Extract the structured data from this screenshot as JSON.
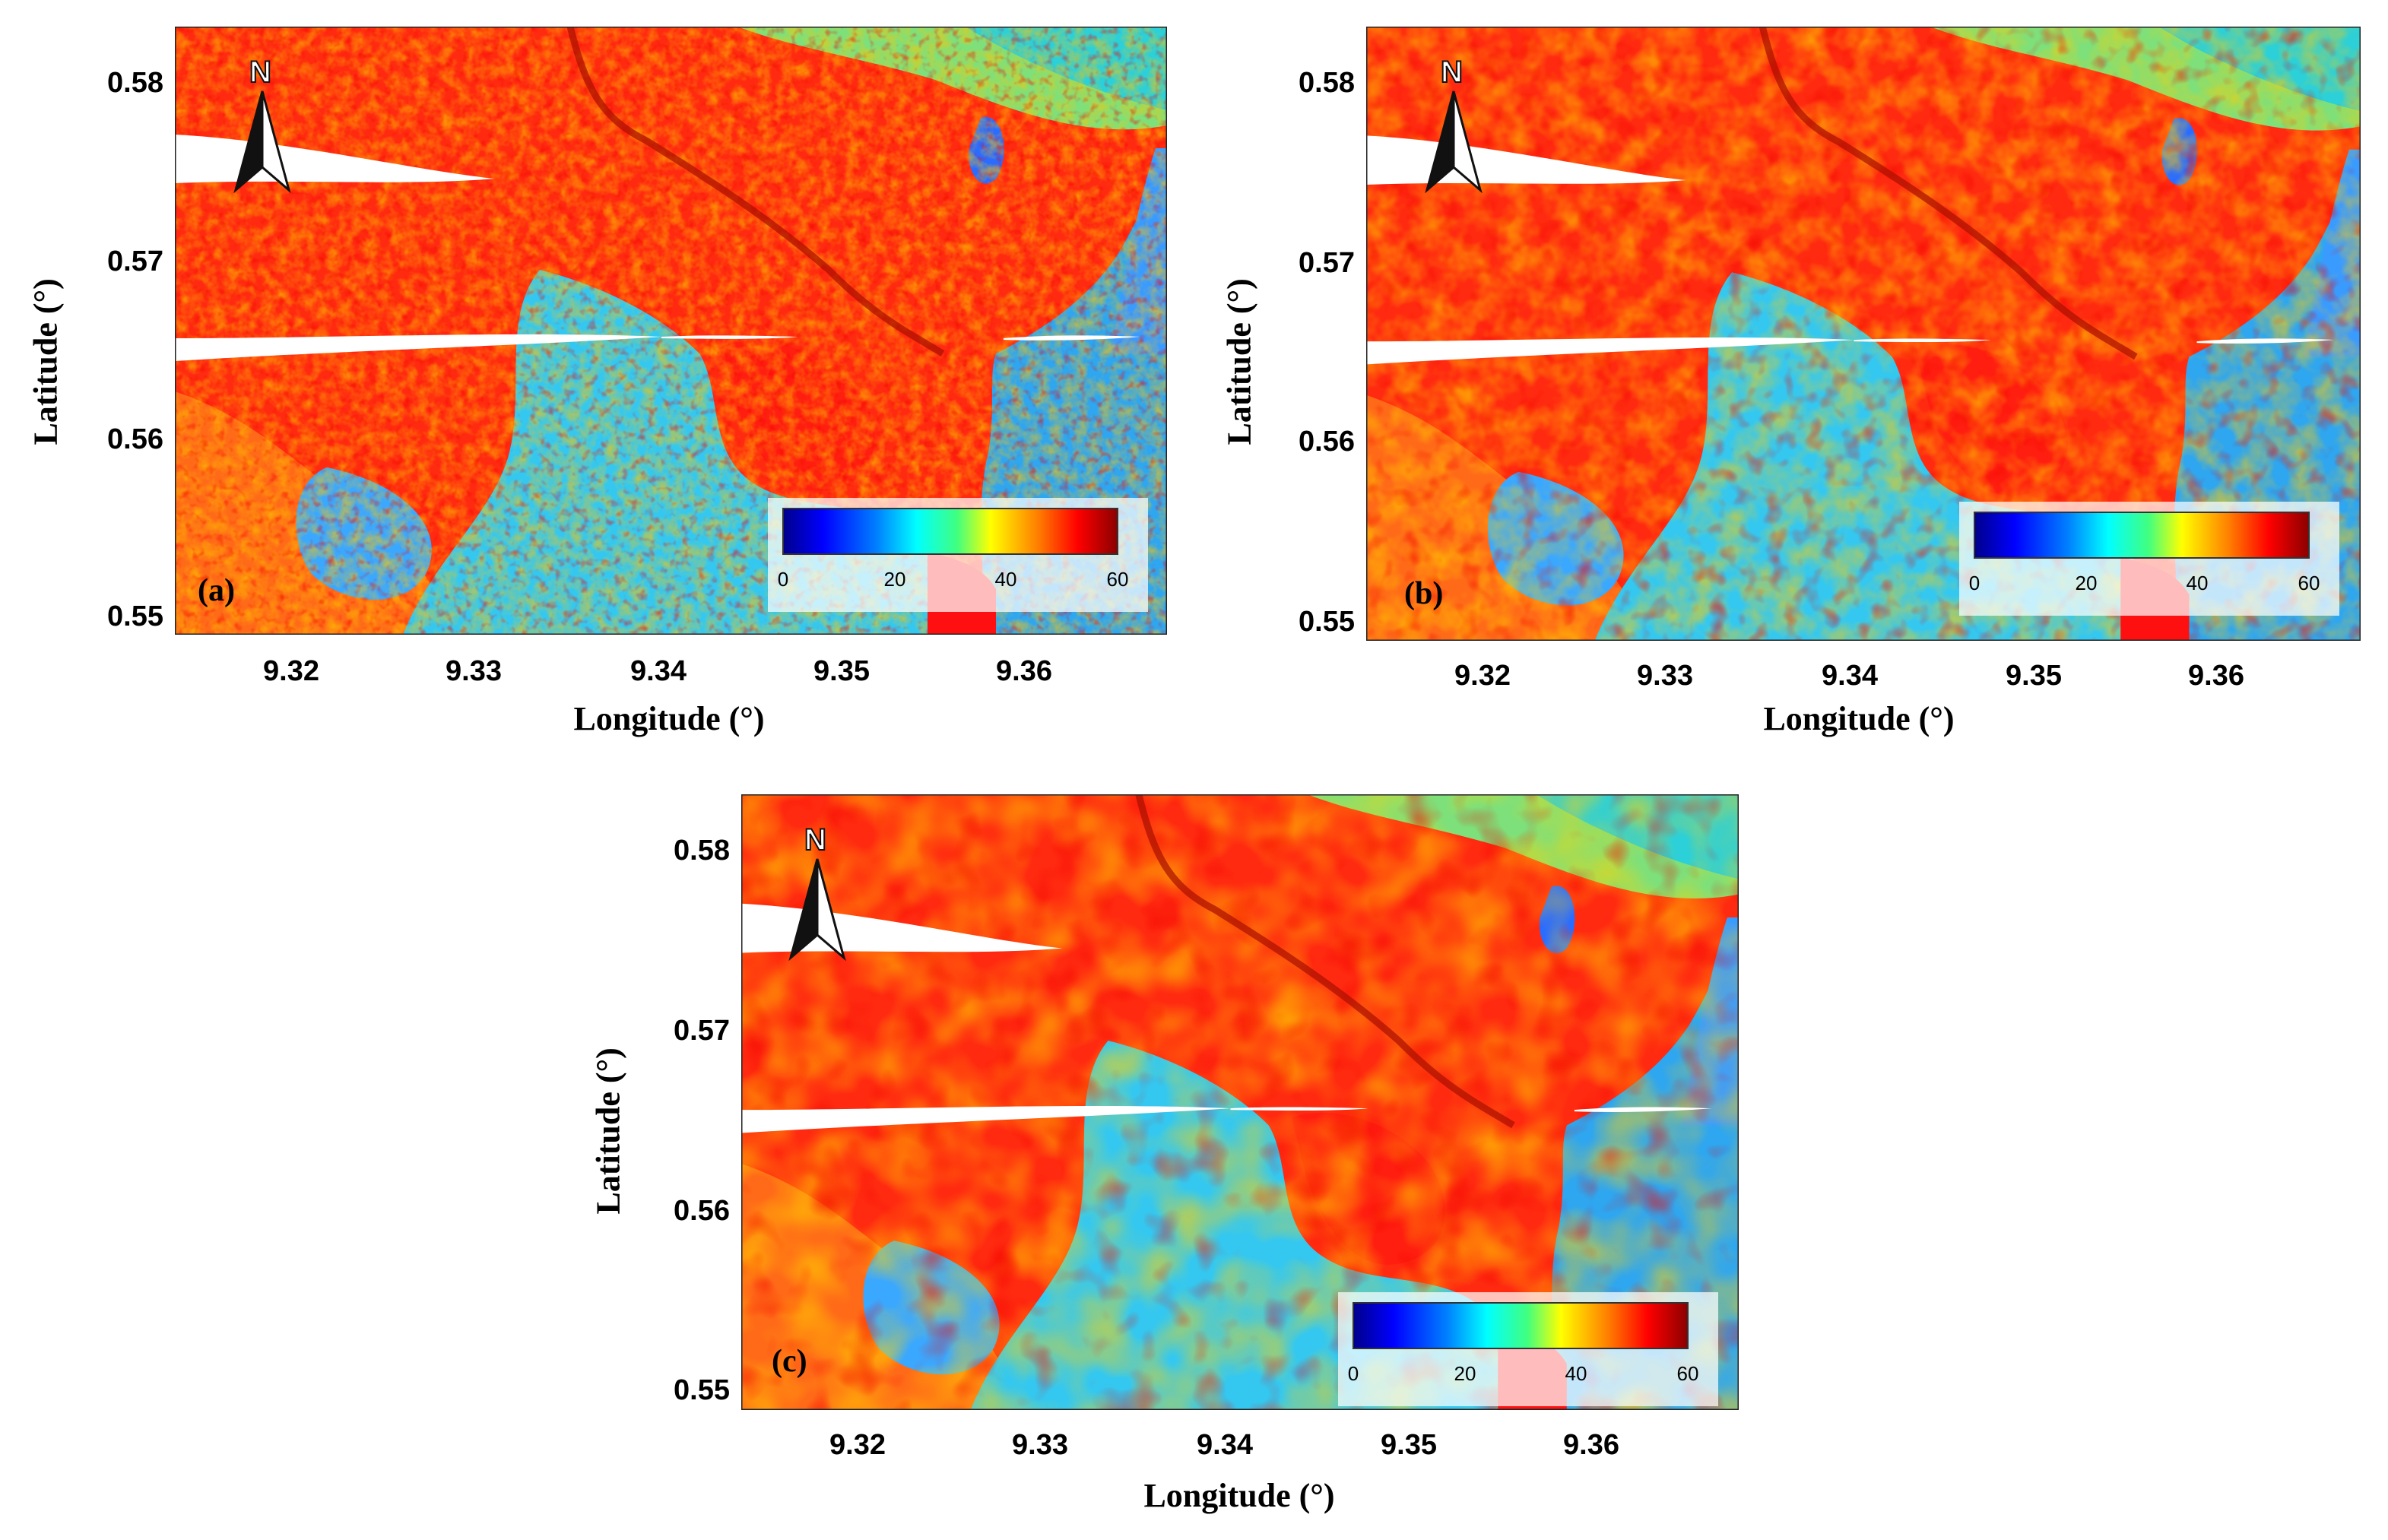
{
  "figure": {
    "panels": [
      {
        "id": "a",
        "label": "(a)"
      },
      {
        "id": "b",
        "label": "(b)"
      },
      {
        "id": "c",
        "label": "(c)"
      }
    ],
    "x_axis": {
      "label": "Longitude (°)",
      "range": [
        9.3145,
        9.3675
      ],
      "ticks": [
        "9.32",
        "9.33",
        "9.34",
        "9.35",
        "9.36"
      ]
    },
    "y_axis": {
      "label": "Latitude (°)",
      "range": [
        0.5495,
        0.5835
      ],
      "ticks": [
        "0.58",
        "0.57",
        "0.56",
        "0.55"
      ]
    },
    "colorbar": {
      "ticks": [
        "0",
        "20",
        "40",
        "60"
      ],
      "range": [
        0,
        60
      ],
      "colormap": [
        "#00008b",
        "#0000ff",
        "#0080ff",
        "#00ffff",
        "#40ff80",
        "#ffff00",
        "#ff8000",
        "#ff0000",
        "#8b0000"
      ]
    },
    "north_arrow": {
      "letter": "N"
    }
  }
}
